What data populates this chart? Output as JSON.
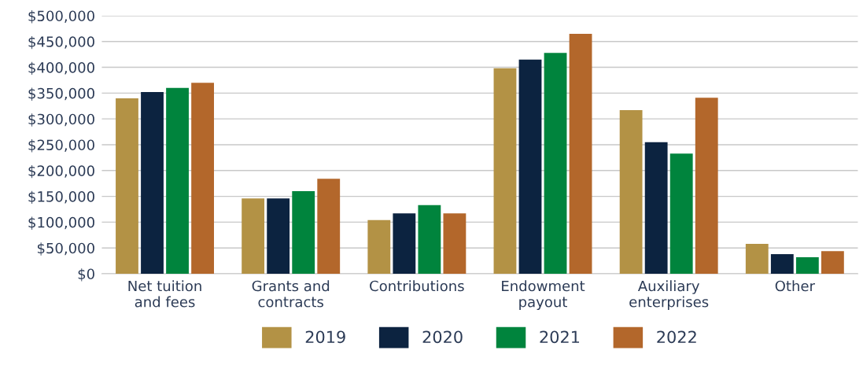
{
  "chart_data": {
    "type": "bar",
    "categories": [
      "Net tuition\nand fees",
      "Grants and\ncontracts",
      "Contributions",
      "Endowment\npayout",
      "Auxiliary\nenterprises",
      "Other"
    ],
    "series": [
      {
        "name": "2019",
        "color": "#b39245",
        "values": [
          340000,
          146000,
          104000,
          398000,
          317000,
          58000
        ]
      },
      {
        "name": "2020",
        "color": "#0c2340",
        "values": [
          352000,
          146000,
          117000,
          415000,
          255000,
          38000
        ]
      },
      {
        "name": "2021",
        "color": "#00843d",
        "values": [
          360000,
          160000,
          133000,
          428000,
          233000,
          32000
        ]
      },
      {
        "name": "2022",
        "color": "#b3672b",
        "values": [
          370000,
          184000,
          117000,
          465000,
          341000,
          44000
        ]
      }
    ],
    "ylim": [
      0,
      500000
    ],
    "yticks": [
      {
        "value": 0,
        "label": "$0"
      },
      {
        "value": 50000,
        "label": "$50,000"
      },
      {
        "value": 100000,
        "label": "$100,000"
      },
      {
        "value": 150000,
        "label": "$150,000"
      },
      {
        "value": 200000,
        "label": "$200,000"
      },
      {
        "value": 250000,
        "label": "$250,000"
      },
      {
        "value": 300000,
        "label": "$300,000"
      },
      {
        "value": 350000,
        "label": "$350,000"
      },
      {
        "value": 400000,
        "label": "$400,000"
      },
      {
        "value": 450000,
        "label": "$450,000"
      },
      {
        "value": 500000,
        "label": "$500,000"
      }
    ],
    "grid": "y",
    "legend": "bottom"
  }
}
